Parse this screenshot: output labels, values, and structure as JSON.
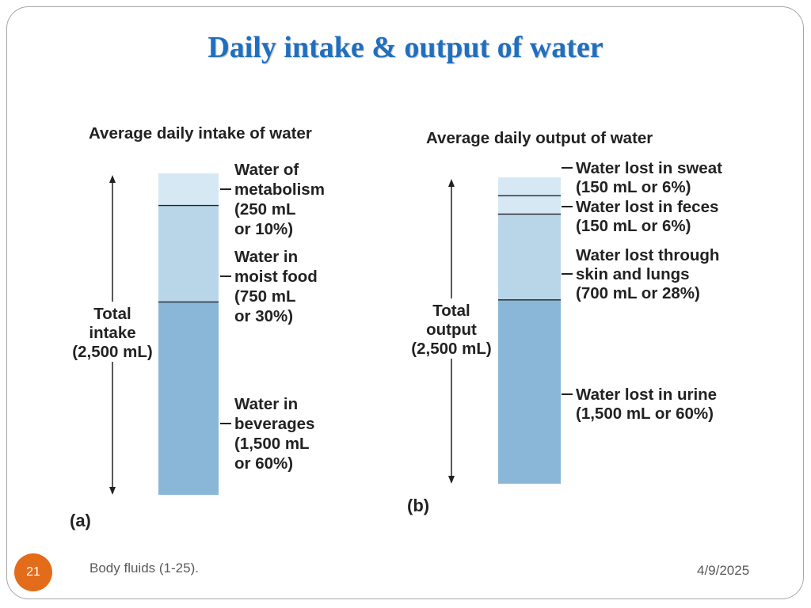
{
  "slide": {
    "title": "Daily intake & output of water",
    "number": "21",
    "footer": "Body fluids (1-25).",
    "date": "4/9/2025"
  },
  "colors": {
    "title": "#1f6fc0",
    "segment_light": "#d6e8f3",
    "segment_mid": "#b9d6e8",
    "segment_dark": "#8ab7d7",
    "slide_number_bg": "#e36c1b"
  },
  "chart_data": [
    {
      "type": "stacked-bar",
      "panel_label": "(a)",
      "title": "Average daily intake of water",
      "total_label": [
        "Total",
        "intake",
        "(2,500 mL)"
      ],
      "total_ml": 2500,
      "segments_top_to_bottom": [
        {
          "name": "Water of metabolism",
          "ml": 250,
          "percent": 10,
          "label_lines": [
            "Water of",
            "metabolism",
            "(250 mL",
            "or 10%)"
          ],
          "color": "#d6e8f3"
        },
        {
          "name": "Water in moist food",
          "ml": 750,
          "percent": 30,
          "label_lines": [
            "Water in",
            "moist food",
            "(750 mL",
            "or 30%)"
          ],
          "color": "#b9d6e8"
        },
        {
          "name": "Water in beverages",
          "ml": 1500,
          "percent": 60,
          "label_lines": [
            "Water in",
            "beverages",
            "(1,500 mL",
            "or 60%)"
          ],
          "color": "#8ab7d7"
        }
      ]
    },
    {
      "type": "stacked-bar",
      "panel_label": "(b)",
      "title": "Average daily output of water",
      "total_label": [
        "Total",
        "output",
        "(2,500 mL)"
      ],
      "total_ml": 2500,
      "segments_top_to_bottom": [
        {
          "name": "Water lost in sweat",
          "ml": 150,
          "percent": 6,
          "label_lines": [
            "Water lost in sweat",
            "(150 mL or 6%)"
          ],
          "color": "#d6e8f3"
        },
        {
          "name": "Water lost in feces",
          "ml": 150,
          "percent": 6,
          "label_lines": [
            "Water lost in feces",
            "(150 mL or 6%)"
          ],
          "color": "#d6e8f3"
        },
        {
          "name": "Water lost through skin and lungs",
          "ml": 700,
          "percent": 28,
          "label_lines": [
            "Water lost through",
            "skin and lungs",
            "(700 mL or 28%)"
          ],
          "color": "#b9d6e8"
        },
        {
          "name": "Water lost in urine",
          "ml": 1500,
          "percent": 60,
          "label_lines": [
            "Water lost in urine",
            "(1,500 mL or 60%)"
          ],
          "color": "#8ab7d7"
        }
      ]
    }
  ]
}
